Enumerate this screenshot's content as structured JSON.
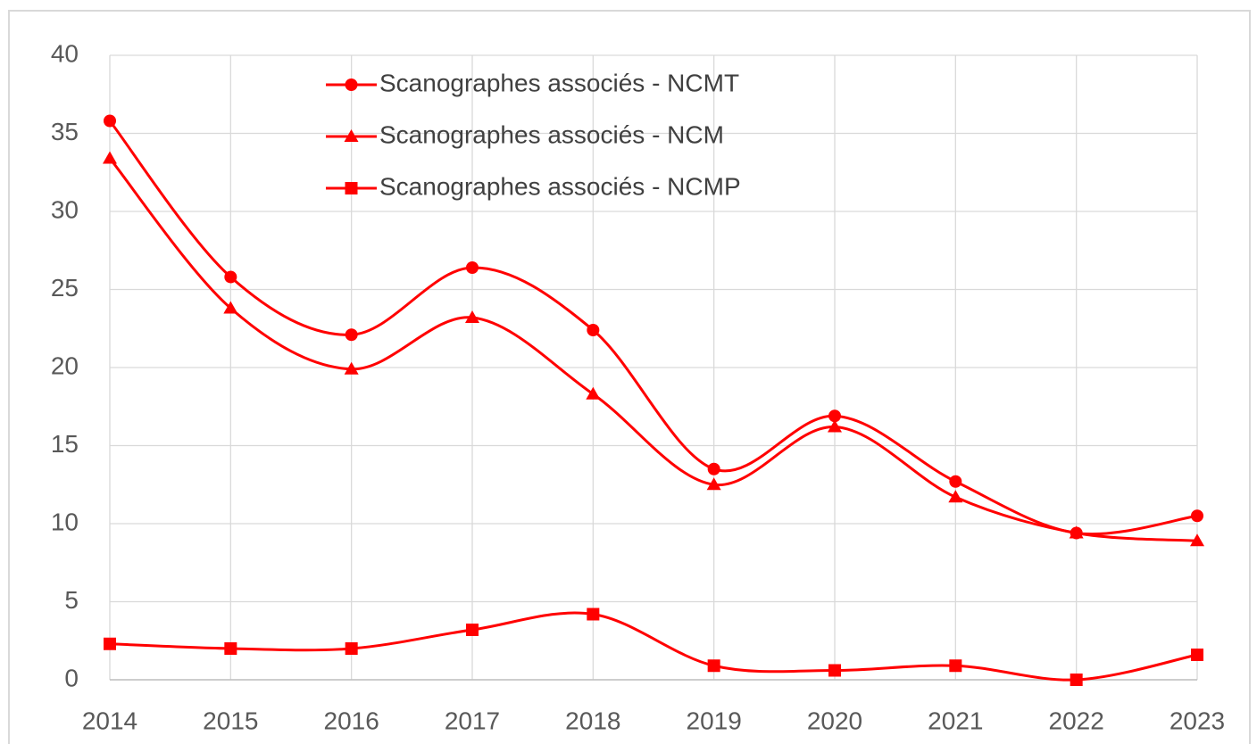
{
  "chart_data": {
    "type": "line",
    "categories": [
      "2014",
      "2015",
      "2016",
      "2017",
      "2018",
      "2019",
      "2020",
      "2021",
      "2022",
      "2023"
    ],
    "series": [
      {
        "name": "Scanographes associés - NCMT",
        "color": "#ff0000",
        "marker": "circle",
        "values": [
          35.8,
          25.8,
          22.1,
          26.4,
          22.4,
          13.5,
          16.9,
          12.7,
          9.4,
          10.5
        ]
      },
      {
        "name": "Scanographes associés - NCM",
        "color": "#ff0000",
        "marker": "triangle",
        "values": [
          33.4,
          23.8,
          19.9,
          23.2,
          18.3,
          12.5,
          16.2,
          11.7,
          9.4,
          8.9
        ]
      },
      {
        "name": "Scanographes associés - NCMP",
        "color": "#ff0000",
        "marker": "square",
        "values": [
          2.3,
          2.0,
          2.0,
          3.2,
          4.2,
          0.9,
          0.6,
          0.9,
          0.0,
          1.6
        ]
      }
    ],
    "ylim": [
      0,
      40
    ],
    "yticks": [
      0,
      5,
      10,
      15,
      20,
      25,
      30,
      35,
      40
    ],
    "grid": true,
    "smooth": true,
    "legend": "top"
  }
}
